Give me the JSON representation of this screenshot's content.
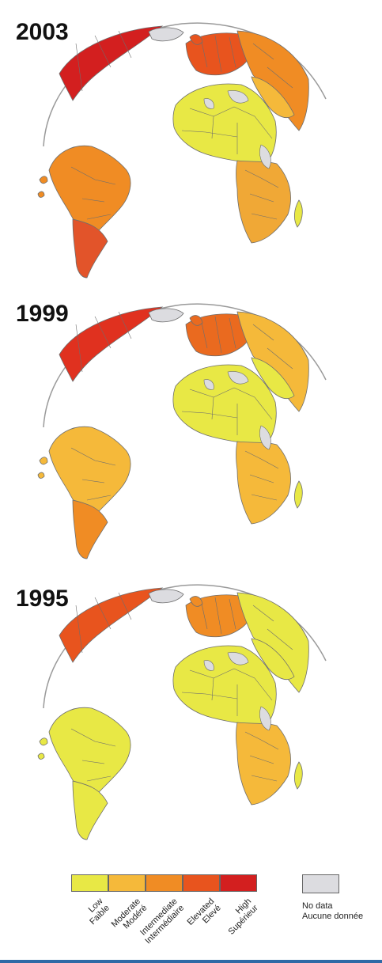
{
  "panels": [
    {
      "year": "2003",
      "na": "#d31f1f",
      "eu": "#e8541e",
      "ru": "#f08c24",
      "me": "#f5b93a",
      "sa": "#f08c24",
      "sa_s": "#e2542a",
      "af": "#e8e845",
      "af_s": "#f0a836"
    },
    {
      "year": "1999",
      "na": "#e0311f",
      "eu": "#ea6a1f",
      "ru": "#f5b93a",
      "me": "#e8e845",
      "sa": "#f5b93a",
      "sa_s": "#f08c24",
      "af": "#e8e845",
      "af_s": "#f5b93a"
    },
    {
      "year": "1995",
      "na": "#e8541e",
      "eu": "#f08c24",
      "ru": "#e8e845",
      "me": "#e8e845",
      "sa": "#e8e845",
      "sa_s": "#e8e845",
      "af": "#e8e845",
      "af_s": "#f5b93a"
    }
  ],
  "legend": {
    "categories": [
      {
        "en": "Low",
        "fr": "Faible",
        "color": "#e8e845"
      },
      {
        "en": "Moderate",
        "fr": "Modéré",
        "color": "#f5b93a"
      },
      {
        "en": "Intermediate",
        "fr": "Intermédiaire",
        "color": "#f08c24"
      },
      {
        "en": "Elevated",
        "fr": "Elevé",
        "color": "#e8541e"
      },
      {
        "en": "High",
        "fr": "Supérieur",
        "color": "#d31f1f"
      }
    ],
    "no_data": {
      "en": "No data",
      "fr": "Aucune donnée",
      "color": "#dcdce0"
    }
  }
}
